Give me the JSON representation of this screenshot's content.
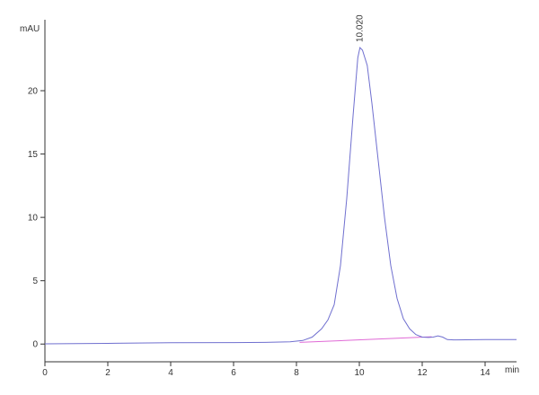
{
  "chart_data": {
    "type": "line",
    "title": "",
    "xlabel": "min",
    "ylabel": "mAU",
    "xlim": [
      0,
      15
    ],
    "ylim": [
      -1.4,
      25.6
    ],
    "grid": false,
    "x_ticks": [
      "0",
      "2",
      "4",
      "6",
      "8",
      "10",
      "12",
      "14"
    ],
    "y_ticks": [
      "0",
      "5",
      "10",
      "15",
      "20"
    ],
    "colors": {
      "signal": "#6f6fcf",
      "baseline": "#e06ad6",
      "axis": "#333333"
    },
    "peak_label": "10.020",
    "series": [
      {
        "name": "",
        "x": [
          0,
          2,
          4,
          6,
          7,
          7.8,
          8.2,
          8.5,
          8.8,
          9.0,
          9.2,
          9.4,
          9.6,
          9.8,
          9.95,
          10.02,
          10.1,
          10.25,
          10.4,
          10.6,
          10.8,
          11.0,
          11.2,
          11.4,
          11.6,
          11.8,
          12.0,
          12.2,
          12.35,
          12.5,
          12.65,
          12.8,
          13.0,
          14.0,
          15.0
        ],
        "y": [
          0.02,
          0.05,
          0.1,
          0.12,
          0.13,
          0.18,
          0.28,
          0.55,
          1.2,
          1.9,
          3.1,
          6.2,
          11.5,
          18.0,
          22.6,
          23.4,
          23.2,
          22.0,
          19.0,
          14.5,
          10.0,
          6.2,
          3.6,
          2.0,
          1.2,
          0.75,
          0.55,
          0.52,
          0.55,
          0.65,
          0.55,
          0.35,
          0.33,
          0.35,
          0.36
        ]
      }
    ],
    "baseline": {
      "x": [
        8.1,
        12.3
      ],
      "y": [
        0.13,
        0.58
      ]
    },
    "peak": {
      "x": 10.02,
      "y": 23.4
    }
  }
}
